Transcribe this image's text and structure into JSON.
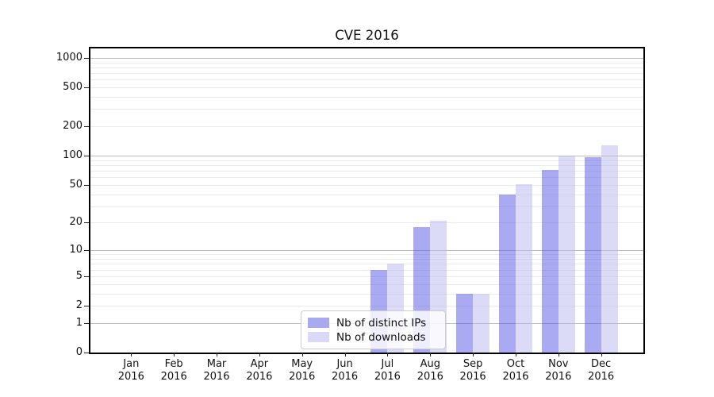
{
  "chart_data": {
    "type": "bar",
    "title": "CVE 2016",
    "categories": [
      "Jan",
      "Feb",
      "Mar",
      "Apr",
      "May",
      "Jun",
      "Jul",
      "Aug",
      "Sep",
      "Oct",
      "Nov",
      "Dec"
    ],
    "x_year": "2016",
    "series": [
      {
        "name": "Nb of distinct IPs",
        "fill": "rgba(85,85,229,0.5)",
        "legend_swatch": "#a9a9f0",
        "values": [
          0,
          0,
          0,
          0,
          0,
          0,
          6,
          18,
          3,
          40,
          72,
          96
        ]
      },
      {
        "name": "Nb of downloads",
        "fill": "rgba(184,184,240,0.5)",
        "legend_swatch": "#dadaf7",
        "values": [
          0,
          0,
          0,
          0,
          0,
          0,
          7,
          21,
          3,
          51,
          100,
          128
        ]
      }
    ],
    "yticks": [
      0,
      1,
      2,
      5,
      10,
      20,
      50,
      100,
      200,
      500,
      1000
    ],
    "ylim": [
      0,
      1250
    ],
    "yscale": "symlog (pos ~ log10(1+v))",
    "grid": "on",
    "legend_position": "lower center"
  },
  "colors": {
    "background": "#ffffff",
    "spine": "#000000",
    "major_grid": "#bdbdbd",
    "minor_grid": "#ebebeb",
    "text": "#111111",
    "legend_border": "#cccccc",
    "legend_bg": "rgba(255,255,255,0.8)",
    "bar_ips": "#aaaaf2",
    "bar_downloads": "#dcdcf8"
  }
}
